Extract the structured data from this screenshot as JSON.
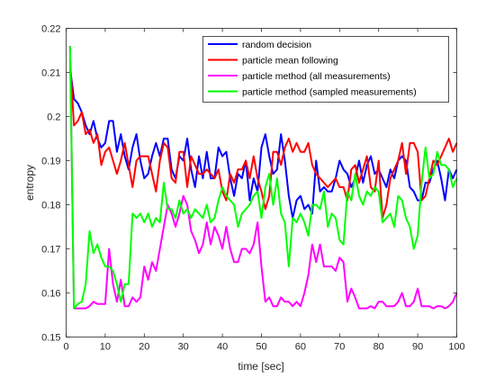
{
  "chart_data": {
    "type": "line",
    "xlabel": "time [sec]",
    "ylabel": "entropy",
    "xlim": [
      0,
      100
    ],
    "ylim": [
      0.15,
      0.22
    ],
    "xticks": [
      0,
      10,
      20,
      30,
      40,
      50,
      60,
      70,
      80,
      90,
      100
    ],
    "yticks": [
      0.15,
      0.16,
      0.17,
      0.18,
      0.19,
      0.2,
      0.21,
      0.22
    ],
    "ytick_labels": [
      "0.15",
      "0.16",
      "0.17",
      "0.18",
      "0.19",
      "0.2",
      "0.21",
      "0.22"
    ],
    "grid": false,
    "legend_position": "top-right",
    "series": [
      {
        "name": "random decision",
        "color": "#0000ff",
        "x": [
          1,
          2,
          3,
          4,
          5,
          6,
          7,
          8,
          9,
          10,
          11,
          12,
          13,
          14,
          15,
          16,
          17,
          18,
          19,
          20,
          21,
          22,
          23,
          24,
          25,
          26,
          27,
          28,
          29,
          30,
          31,
          32,
          33,
          34,
          35,
          36,
          37,
          38,
          39,
          40,
          41,
          42,
          43,
          44,
          45,
          46,
          47,
          48,
          49,
          50,
          51,
          52,
          53,
          54,
          55,
          56,
          57,
          58,
          59,
          60,
          61,
          62,
          63,
          64,
          65,
          66,
          67,
          68,
          69,
          70,
          71,
          72,
          73,
          74,
          75,
          76,
          77,
          78,
          79,
          80,
          81,
          82,
          83,
          84,
          85,
          86,
          87,
          88,
          89,
          90,
          91,
          92,
          93,
          94,
          95,
          96,
          97,
          98,
          99,
          100
        ],
        "values": [
          0.211,
          0.204,
          0.203,
          0.201,
          0.198,
          0.196,
          0.199,
          0.195,
          0.193,
          0.194,
          0.199,
          0.199,
          0.192,
          0.196,
          0.191,
          0.188,
          0.193,
          0.196,
          0.19,
          0.186,
          0.187,
          0.191,
          0.194,
          0.191,
          0.195,
          0.195,
          0.188,
          0.186,
          0.191,
          0.19,
          0.195,
          0.188,
          0.184,
          0.191,
          0.186,
          0.192,
          0.186,
          0.186,
          0.193,
          0.191,
          0.192,
          0.186,
          0.182,
          0.187,
          0.186,
          0.19,
          0.181,
          0.186,
          0.183,
          0.193,
          0.196,
          0.191,
          0.187,
          0.188,
          0.196,
          0.19,
          0.182,
          0.177,
          0.181,
          0.182,
          0.179,
          0.18,
          0.178,
          0.19,
          0.183,
          0.184,
          0.183,
          0.183,
          0.186,
          0.19,
          0.188,
          0.187,
          0.184,
          0.186,
          0.19,
          0.185,
          0.189,
          0.191,
          0.187,
          0.188,
          0.186,
          0.184,
          0.188,
          0.186,
          0.19,
          0.191,
          0.19,
          0.184,
          0.183,
          0.181,
          0.181,
          0.185,
          0.185,
          0.188,
          0.19,
          0.186,
          0.181,
          0.188,
          0.186,
          0.188
        ]
      },
      {
        "name": "particle mean following",
        "color": "#ff0000",
        "x": [
          1,
          2,
          3,
          4,
          5,
          6,
          7,
          8,
          9,
          10,
          11,
          12,
          13,
          14,
          15,
          16,
          17,
          18,
          19,
          20,
          21,
          22,
          23,
          24,
          25,
          26,
          27,
          28,
          29,
          30,
          31,
          32,
          33,
          34,
          35,
          36,
          37,
          38,
          39,
          40,
          41,
          42,
          43,
          44,
          45,
          46,
          47,
          48,
          49,
          50,
          51,
          52,
          53,
          54,
          55,
          56,
          57,
          58,
          59,
          60,
          61,
          62,
          63,
          64,
          65,
          66,
          67,
          68,
          69,
          70,
          71,
          72,
          73,
          74,
          75,
          76,
          77,
          78,
          79,
          80,
          81,
          82,
          83,
          84,
          85,
          86,
          87,
          88,
          89,
          90,
          91,
          92,
          93,
          94,
          95,
          96,
          97,
          98,
          99,
          100
        ],
        "values": [
          0.213,
          0.198,
          0.199,
          0.201,
          0.196,
          0.197,
          0.194,
          0.196,
          0.189,
          0.192,
          0.193,
          0.19,
          0.187,
          0.19,
          0.194,
          0.189,
          0.184,
          0.19,
          0.191,
          0.191,
          0.191,
          0.187,
          0.183,
          0.19,
          0.194,
          0.193,
          0.186,
          0.185,
          0.192,
          0.192,
          0.184,
          0.191,
          0.189,
          0.187,
          0.187,
          0.188,
          0.187,
          0.186,
          0.188,
          0.183,
          0.181,
          0.187,
          0.185,
          0.188,
          0.188,
          0.19,
          0.186,
          0.191,
          0.186,
          0.183,
          0.179,
          0.182,
          0.192,
          0.192,
          0.189,
          0.193,
          0.195,
          0.192,
          0.194,
          0.192,
          0.192,
          0.194,
          0.189,
          0.187,
          0.186,
          0.185,
          0.184,
          0.185,
          0.186,
          0.184,
          0.184,
          0.181,
          0.188,
          0.189,
          0.185,
          0.188,
          0.191,
          0.184,
          0.183,
          0.19,
          0.177,
          0.18,
          0.186,
          0.188,
          0.19,
          0.194,
          0.187,
          0.194,
          0.194,
          0.192,
          0.181,
          0.182,
          0.186,
          0.19,
          0.189,
          0.191,
          0.193,
          0.195,
          0.192,
          0.194
        ]
      },
      {
        "name": "particle method (all measurements)",
        "color": "#ff00ff",
        "x": [
          1,
          2,
          3,
          4,
          5,
          6,
          7,
          8,
          9,
          10,
          11,
          12,
          13,
          14,
          15,
          16,
          17,
          18,
          19,
          20,
          21,
          22,
          23,
          24,
          25,
          26,
          27,
          28,
          29,
          30,
          31,
          32,
          33,
          34,
          35,
          36,
          37,
          38,
          39,
          40,
          41,
          42,
          43,
          44,
          45,
          46,
          47,
          48,
          49,
          50,
          51,
          52,
          53,
          54,
          55,
          56,
          57,
          58,
          59,
          60,
          61,
          62,
          63,
          64,
          65,
          66,
          67,
          68,
          69,
          70,
          71,
          72,
          73,
          74,
          75,
          76,
          77,
          78,
          79,
          80,
          81,
          82,
          83,
          84,
          85,
          86,
          87,
          88,
          89,
          90,
          91,
          92,
          93,
          94,
          95,
          96,
          97,
          98,
          99,
          100
        ],
        "values": [
          0.216,
          0.1565,
          0.1565,
          0.1565,
          0.1565,
          0.157,
          0.158,
          0.1575,
          0.1575,
          0.1575,
          0.17,
          0.162,
          0.158,
          0.163,
          0.157,
          0.157,
          0.159,
          0.158,
          0.159,
          0.166,
          0.163,
          0.167,
          0.165,
          0.17,
          0.175,
          0.18,
          0.178,
          0.175,
          0.178,
          0.182,
          0.18,
          0.174,
          0.172,
          0.169,
          0.171,
          0.176,
          0.171,
          0.175,
          0.173,
          0.17,
          0.175,
          0.17,
          0.167,
          0.167,
          0.17,
          0.17,
          0.169,
          0.171,
          0.176,
          0.166,
          0.158,
          0.159,
          0.157,
          0.157,
          0.159,
          0.158,
          0.158,
          0.157,
          0.158,
          0.157,
          0.16,
          0.164,
          0.171,
          0.167,
          0.171,
          0.166,
          0.166,
          0.166,
          0.165,
          0.168,
          0.167,
          0.158,
          0.161,
          0.159,
          0.1565,
          0.1565,
          0.1565,
          0.157,
          0.1565,
          0.158,
          0.158,
          0.157,
          0.157,
          0.157,
          0.158,
          0.16,
          0.157,
          0.157,
          0.158,
          0.161,
          0.157,
          0.157,
          0.157,
          0.1565,
          0.157,
          0.157,
          0.1565,
          0.157,
          0.158,
          0.16
        ]
      },
      {
        "name": "particle method (sampled measurements)",
        "color": "#00ff00",
        "x": [
          1,
          2,
          3,
          4,
          5,
          6,
          7,
          8,
          9,
          10,
          11,
          12,
          13,
          14,
          15,
          16,
          17,
          18,
          19,
          20,
          21,
          22,
          23,
          24,
          25,
          26,
          27,
          28,
          29,
          30,
          31,
          32,
          33,
          34,
          35,
          36,
          37,
          38,
          39,
          40,
          41,
          42,
          43,
          44,
          45,
          46,
          47,
          48,
          49,
          50,
          51,
          52,
          53,
          54,
          55,
          56,
          57,
          58,
          59,
          60,
          61,
          62,
          63,
          64,
          65,
          66,
          67,
          68,
          69,
          70,
          71,
          72,
          73,
          74,
          75,
          76,
          77,
          78,
          79,
          80,
          81,
          82,
          83,
          84,
          85,
          86,
          87,
          88,
          89,
          90,
          91,
          92,
          93,
          94,
          95,
          96,
          97,
          98,
          99,
          100
        ],
        "values": [
          0.216,
          0.1565,
          0.1575,
          0.158,
          0.162,
          0.174,
          0.169,
          0.171,
          0.168,
          0.166,
          0.166,
          0.165,
          0.162,
          0.158,
          0.162,
          0.162,
          0.178,
          0.177,
          0.178,
          0.176,
          0.178,
          0.175,
          0.177,
          0.176,
          0.185,
          0.179,
          0.179,
          0.177,
          0.181,
          0.178,
          0.179,
          0.177,
          0.179,
          0.178,
          0.177,
          0.18,
          0.176,
          0.177,
          0.181,
          0.184,
          0.182,
          0.181,
          0.18,
          0.175,
          0.178,
          0.179,
          0.18,
          0.182,
          0.183,
          0.177,
          0.184,
          0.187,
          0.18,
          0.186,
          0.178,
          0.176,
          0.166,
          0.177,
          0.176,
          0.178,
          0.176,
          0.173,
          0.18,
          0.18,
          0.179,
          0.183,
          0.175,
          0.178,
          0.177,
          0.172,
          0.171,
          0.183,
          0.181,
          0.187,
          0.182,
          0.18,
          0.183,
          0.182,
          0.184,
          0.183,
          0.176,
          0.177,
          0.178,
          0.175,
          0.182,
          0.181,
          0.177,
          0.175,
          0.17,
          0.173,
          0.185,
          0.193,
          0.186,
          0.187,
          0.192,
          0.189,
          0.189,
          0.188,
          0.184,
          0.186
        ]
      }
    ]
  }
}
